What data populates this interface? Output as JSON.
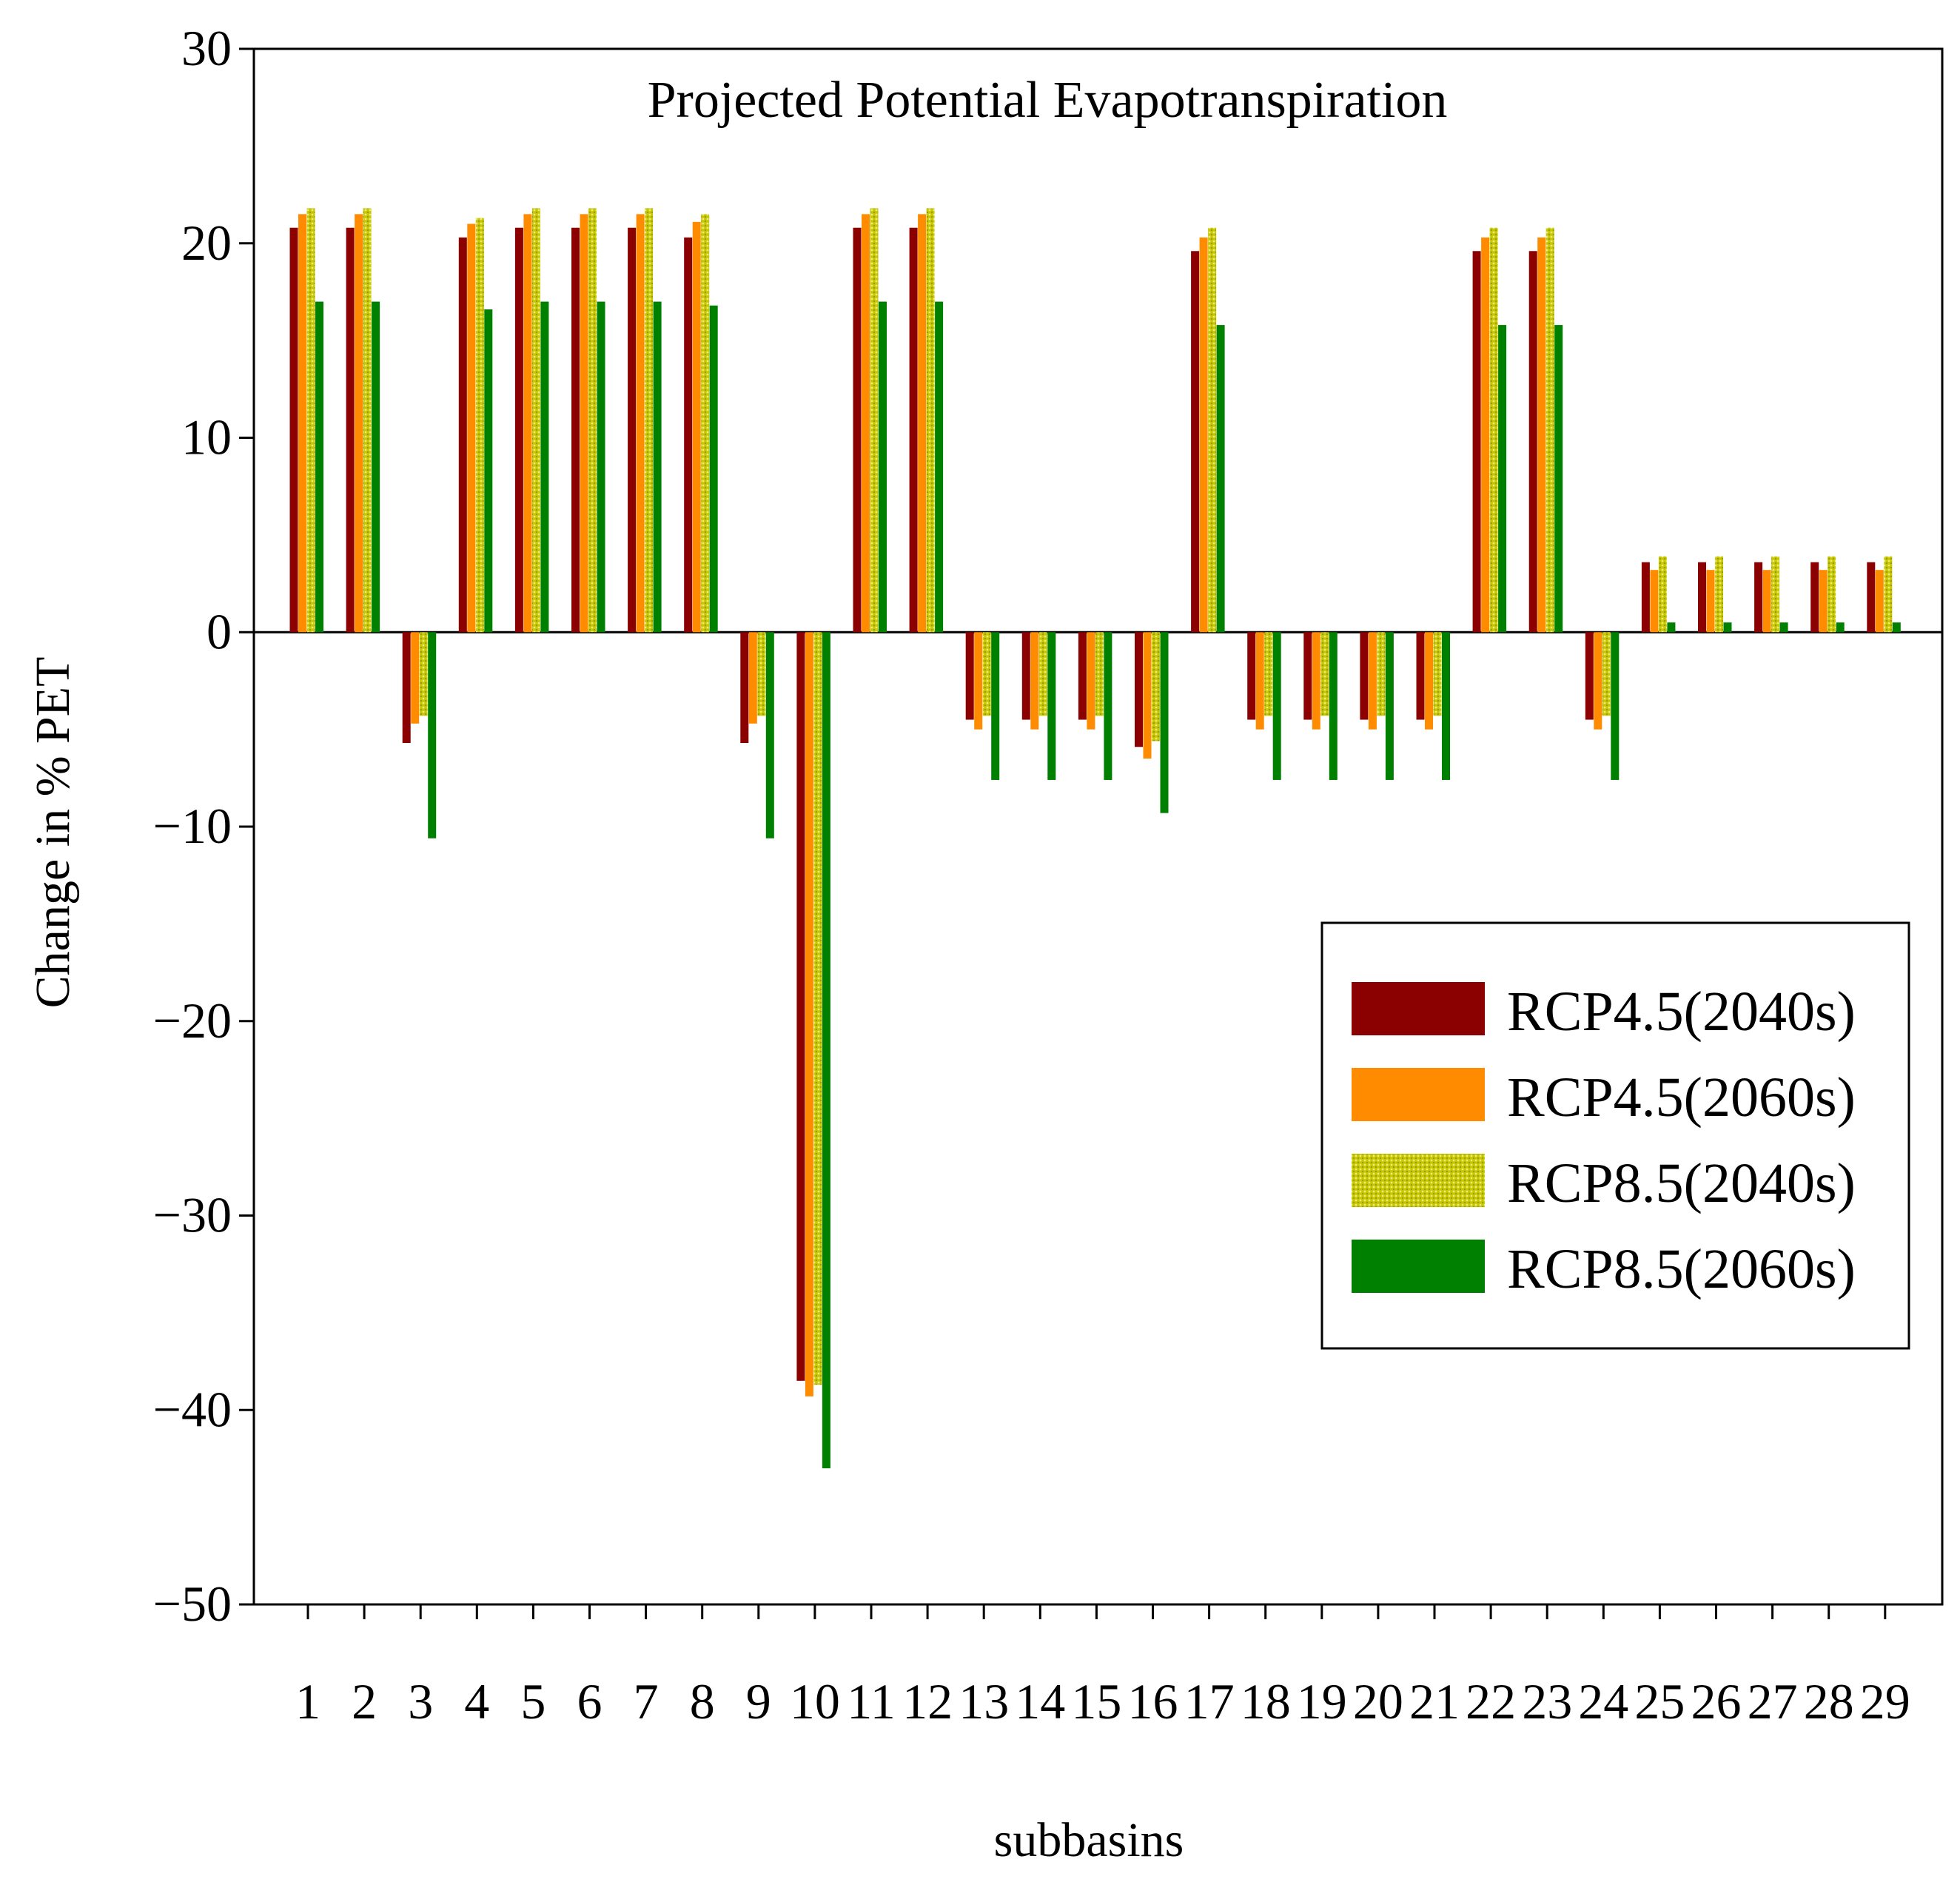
{
  "chart_data": {
    "type": "bar",
    "title": "Projected Potential Evapotranspiration",
    "xlabel": "subbasins",
    "ylabel": "Change in % PET",
    "ylim": [
      -50,
      30
    ],
    "yticks": [
      30,
      20,
      10,
      0,
      -10,
      -20,
      -30,
      -40,
      -50
    ],
    "ytick_labels": [
      "30",
      "20",
      "10",
      "0",
      "−10",
      "−20",
      "−30",
      "−40",
      "−50"
    ],
    "categories": [
      "1",
      "2",
      "3",
      "4",
      "5",
      "6",
      "7",
      "8",
      "9",
      "10",
      "11",
      "12",
      "13",
      "14",
      "15",
      "16",
      "17",
      "18",
      "19",
      "20",
      "21",
      "22",
      "23",
      "24",
      "25",
      "26",
      "27",
      "28",
      "29"
    ],
    "legend_position": "right",
    "series": [
      {
        "name": "RCP4.5(2040s)",
        "color": "#8B0000",
        "values": [
          20.8,
          20.8,
          -5.7,
          20.3,
          20.8,
          20.8,
          20.8,
          20.3,
          -5.7,
          -38.5,
          20.8,
          20.8,
          -4.5,
          -4.5,
          -4.5,
          -5.9,
          19.6,
          -4.5,
          -4.5,
          -4.5,
          -4.5,
          19.6,
          19.6,
          -4.5,
          3.6,
          3.6,
          3.6,
          3.6,
          3.6
        ]
      },
      {
        "name": "RCP4.5(2060s)",
        "color": "#FF8C00",
        "values": [
          21.5,
          21.5,
          -4.7,
          21.0,
          21.5,
          21.5,
          21.5,
          21.1,
          -4.7,
          -39.3,
          21.5,
          21.5,
          -5.0,
          -5.0,
          -5.0,
          -6.5,
          20.3,
          -5.0,
          -5.0,
          -5.0,
          -5.0,
          20.3,
          20.3,
          -5.0,
          3.2,
          3.2,
          3.2,
          3.2,
          3.2
        ]
      },
      {
        "name": "RCP8.5(2040s)",
        "color": "#C8C800",
        "values": [
          21.8,
          21.8,
          -4.3,
          21.3,
          21.8,
          21.8,
          21.8,
          21.5,
          -4.3,
          -38.7,
          21.8,
          21.8,
          -4.3,
          -4.3,
          -4.3,
          -5.6,
          20.8,
          -4.3,
          -4.3,
          -4.3,
          -4.3,
          20.8,
          20.8,
          -4.3,
          3.9,
          3.9,
          3.9,
          3.9,
          3.9
        ]
      },
      {
        "name": "RCP8.5(2060s)",
        "color": "#008000",
        "values": [
          17.0,
          17.0,
          -10.6,
          16.6,
          17.0,
          17.0,
          17.0,
          16.8,
          -10.6,
          -43.0,
          17.0,
          17.0,
          -7.6,
          -7.6,
          -7.6,
          -9.3,
          15.8,
          -7.6,
          -7.6,
          -7.6,
          -7.6,
          15.8,
          15.8,
          -7.6,
          0.5,
          0.5,
          0.5,
          0.5,
          0.5
        ]
      }
    ]
  }
}
